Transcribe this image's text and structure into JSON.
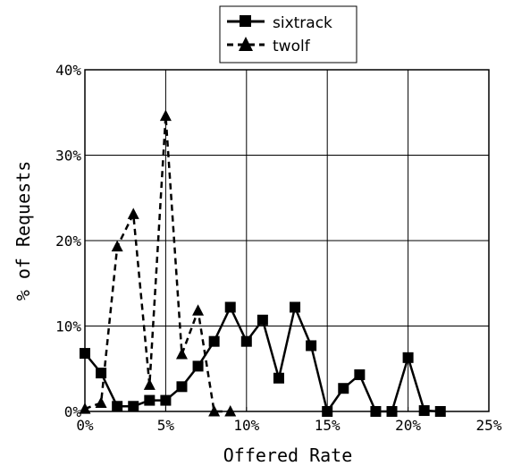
{
  "chart_data": {
    "type": "line",
    "xlabel": "Offered Rate",
    "ylabel": "% of Requests",
    "xlim": [
      0,
      25
    ],
    "ylim": [
      0,
      40
    ],
    "xticks": [
      "0%",
      "5%",
      "10%",
      "15%",
      "20%",
      "25%"
    ],
    "yticks": [
      "0%",
      "10%",
      "20%",
      "30%",
      "40%"
    ],
    "grid": true,
    "legend_position": "top-center",
    "series": [
      {
        "name": "sixtrack",
        "marker": "square",
        "line": "solid",
        "color": "#000000",
        "x": [
          0,
          1,
          2,
          3,
          4,
          5,
          6,
          7,
          8,
          9,
          10,
          11,
          12,
          13,
          14,
          15,
          16,
          17,
          18,
          19,
          20,
          21,
          22
        ],
        "y": [
          6.8,
          4.5,
          0.6,
          0.6,
          1.3,
          1.3,
          2.9,
          5.3,
          8.2,
          12.2,
          8.2,
          10.7,
          3.9,
          12.2,
          7.7,
          0.0,
          2.7,
          4.3,
          0.0,
          0.0,
          6.3,
          0.1,
          0.0
        ]
      },
      {
        "name": "twolf",
        "marker": "triangle",
        "line": "dashed",
        "color": "#000000",
        "x": [
          0,
          1,
          2,
          3,
          4,
          5,
          6,
          7,
          8,
          9
        ],
        "y": [
          0.3,
          1.0,
          19.3,
          23.1,
          3.1,
          34.6,
          6.7,
          11.8,
          0.0,
          0.0
        ]
      }
    ]
  }
}
